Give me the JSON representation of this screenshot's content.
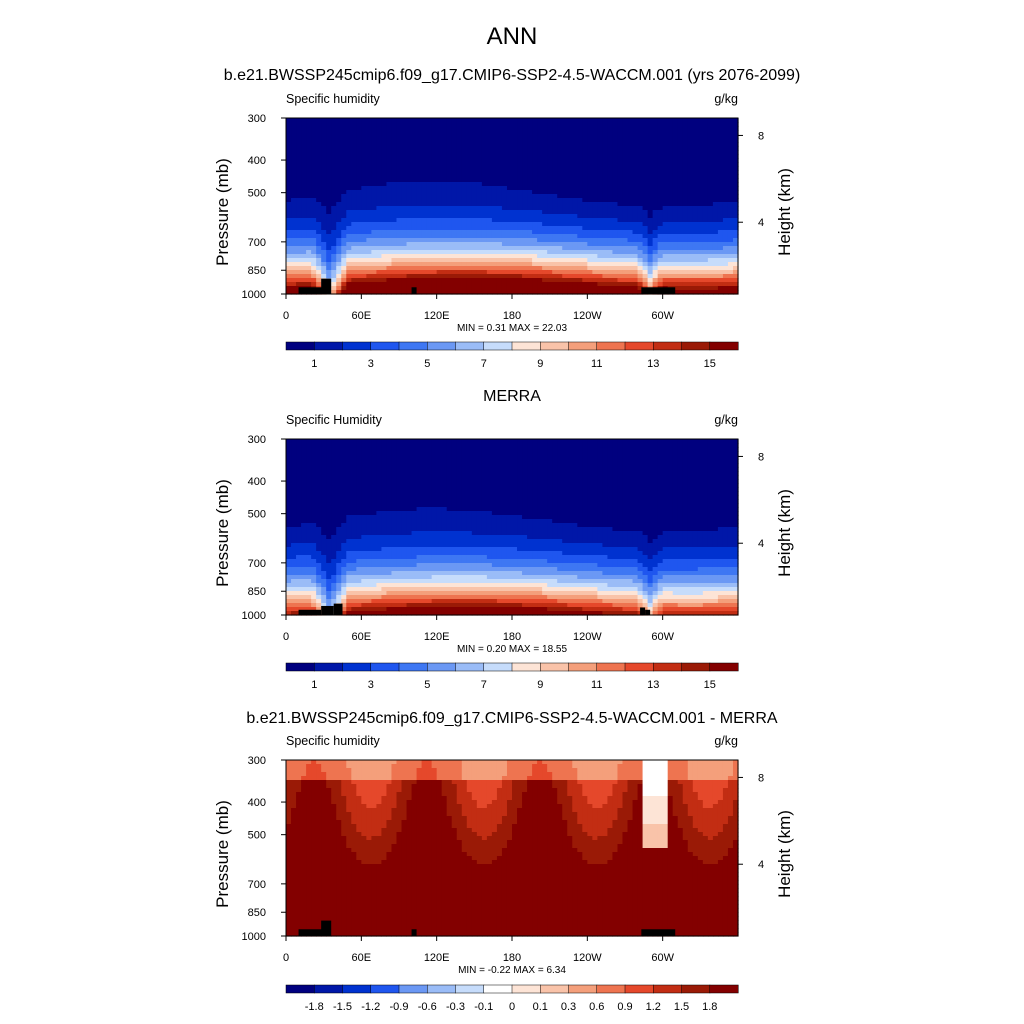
{
  "main_title": "ANN",
  "colors": {
    "abs_scale": [
      "#00007f",
      "#0017a8",
      "#0032d0",
      "#1f56ef",
      "#3e77f3",
      "#6b98f4",
      "#9abcf7",
      "#c6dcfb",
      "#fde4d6",
      "#f9c3a9",
      "#f49f7b",
      "#ee7450",
      "#e5482b",
      "#c22d13",
      "#9a1a06",
      "#830000"
    ],
    "diff_scale": [
      "#00007f",
      "#0017a8",
      "#0032d0",
      "#1f56ef",
      "#6b98f4",
      "#9abcf7",
      "#c6dcfb",
      "#ffffff",
      "#fde4d6",
      "#f9c3a9",
      "#f49f7b",
      "#ee7450",
      "#e5482b",
      "#c22d13",
      "#9a1a06",
      "#830000"
    ],
    "topography": "#000000"
  },
  "chart_data": [
    {
      "type": "heatmap",
      "title": "b.e21.BWSSP245cmip6.f09_g17.CMIP6-SSP2-4.5-WACCM.001 (yrs 2076-2099)",
      "left_label": "Specific humidity",
      "units": "g/kg",
      "ylabel": "Pressure (mb)",
      "y2label": "Height (km)",
      "y_ticks": [
        "300",
        "400",
        "500",
        "700",
        "850",
        "1000"
      ],
      "y2_ticks": [
        "8",
        "4"
      ],
      "x_ticks": [
        "0",
        "60E",
        "120E",
        "180",
        "120W",
        "60W"
      ],
      "xlim": [
        0,
        360
      ],
      "ylim": [
        1000,
        300
      ],
      "min": "0.31",
      "max": "22.03",
      "stats": {
        "min_label": "MIN =",
        "max_label": "MAX ="
      },
      "colorbar_labels": [
        "1",
        "3",
        "5",
        "7",
        "9",
        "11",
        "13",
        "15"
      ],
      "scale": "abs"
    },
    {
      "type": "heatmap",
      "title": "MERRA",
      "left_label": "Specific Humidity",
      "units": "g/kg",
      "ylabel": "Pressure (mb)",
      "y2label": "Height (km)",
      "y_ticks": [
        "300",
        "400",
        "500",
        "700",
        "850",
        "1000"
      ],
      "y2_ticks": [
        "8",
        "4"
      ],
      "x_ticks": [
        "0",
        "60E",
        "120E",
        "180",
        "120W",
        "60W"
      ],
      "xlim": [
        0,
        360
      ],
      "ylim": [
        1000,
        300
      ],
      "min": "0.20",
      "max": "18.55",
      "stats": {
        "min_label": "MIN =",
        "max_label": "MAX ="
      },
      "colorbar_labels": [
        "1",
        "3",
        "5",
        "7",
        "9",
        "11",
        "13",
        "15"
      ],
      "scale": "abs"
    },
    {
      "type": "heatmap",
      "title": "b.e21.BWSSP245cmip6.f09_g17.CMIP6-SSP2-4.5-WACCM.001 - MERRA",
      "left_label": "Specific humidity",
      "units": "g/kg",
      "ylabel": "Pressure (mb)",
      "y2label": "Height (km)",
      "y_ticks": [
        "300",
        "400",
        "500",
        "700",
        "850",
        "1000"
      ],
      "y2_ticks": [
        "8",
        "4"
      ],
      "x_ticks": [
        "0",
        "60E",
        "120E",
        "180",
        "120W",
        "60W"
      ],
      "xlim": [
        0,
        360
      ],
      "ylim": [
        1000,
        300
      ],
      "min": "-0.22",
      "max": "6.34",
      "stats": {
        "min_label": "MIN =",
        "max_label": "MAX ="
      },
      "colorbar_labels": [
        "-1.8",
        "-1.5",
        "-1.2",
        "-0.9",
        "-0.6",
        "-0.3",
        "-0.1",
        "0",
        "0.1",
        "0.3",
        "0.6",
        "0.9",
        "1.2",
        "1.5",
        "1.8"
      ],
      "scale": "diff"
    }
  ]
}
